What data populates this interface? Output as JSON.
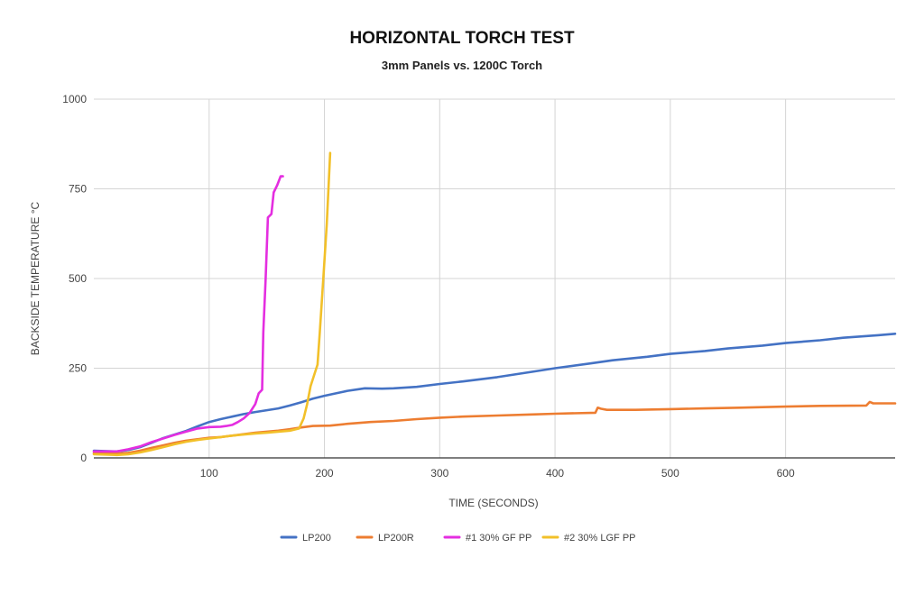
{
  "chart_data": {
    "type": "line",
    "title": "HORIZONTAL TORCH TEST",
    "subtitle": "3mm Panels vs. 1200C Torch",
    "xlabel": "TIME (SECONDS)",
    "ylabel": "BACKSIDE TEMPERATURE °C",
    "xlim": [
      0,
      695
    ],
    "ylim": [
      0,
      1000
    ],
    "x_ticks": [
      100,
      200,
      300,
      400,
      500,
      600
    ],
    "y_ticks": [
      0,
      250,
      500,
      750,
      1000
    ],
    "grid": true,
    "legend_position": "bottom-center",
    "series": [
      {
        "name": "LP200",
        "color": "#4472C4",
        "points": [
          [
            0,
            20
          ],
          [
            20,
            18
          ],
          [
            30,
            22
          ],
          [
            40,
            30
          ],
          [
            50,
            42
          ],
          [
            60,
            55
          ],
          [
            70,
            65
          ],
          [
            80,
            75
          ],
          [
            90,
            88
          ],
          [
            100,
            100
          ],
          [
            110,
            108
          ],
          [
            120,
            115
          ],
          [
            130,
            122
          ],
          [
            140,
            128
          ],
          [
            150,
            133
          ],
          [
            160,
            138
          ],
          [
            170,
            146
          ],
          [
            180,
            155
          ],
          [
            190,
            165
          ],
          [
            200,
            173
          ],
          [
            210,
            180
          ],
          [
            220,
            187
          ],
          [
            235,
            194
          ],
          [
            250,
            193
          ],
          [
            260,
            194
          ],
          [
            280,
            198
          ],
          [
            300,
            206
          ],
          [
            320,
            213
          ],
          [
            350,
            225
          ],
          [
            380,
            240
          ],
          [
            400,
            250
          ],
          [
            430,
            263
          ],
          [
            450,
            272
          ],
          [
            480,
            282
          ],
          [
            500,
            290
          ],
          [
            530,
            298
          ],
          [
            550,
            305
          ],
          [
            580,
            313
          ],
          [
            600,
            320
          ],
          [
            630,
            328
          ],
          [
            650,
            335
          ],
          [
            680,
            342
          ],
          [
            695,
            346
          ]
        ]
      },
      {
        "name": "LP200R",
        "color": "#ED7D31",
        "points": [
          [
            0,
            13
          ],
          [
            20,
            12
          ],
          [
            30,
            14
          ],
          [
            40,
            20
          ],
          [
            50,
            28
          ],
          [
            60,
            35
          ],
          [
            70,
            42
          ],
          [
            80,
            48
          ],
          [
            90,
            52
          ],
          [
            100,
            56
          ],
          [
            110,
            58
          ],
          [
            120,
            62
          ],
          [
            130,
            66
          ],
          [
            140,
            70
          ],
          [
            150,
            73
          ],
          [
            160,
            76
          ],
          [
            170,
            80
          ],
          [
            180,
            85
          ],
          [
            190,
            89
          ],
          [
            205,
            90
          ],
          [
            220,
            95
          ],
          [
            240,
            100
          ],
          [
            260,
            103
          ],
          [
            280,
            108
          ],
          [
            300,
            112
          ],
          [
            320,
            115
          ],
          [
            350,
            118
          ],
          [
            380,
            121
          ],
          [
            400,
            123
          ],
          [
            435,
            126
          ],
          [
            437,
            140
          ],
          [
            440,
            137
          ],
          [
            445,
            134
          ],
          [
            470,
            134
          ],
          [
            500,
            136
          ],
          [
            530,
            138
          ],
          [
            560,
            140
          ],
          [
            600,
            143
          ],
          [
            630,
            145
          ],
          [
            670,
            146
          ],
          [
            673,
            156
          ],
          [
            676,
            152
          ],
          [
            695,
            152
          ]
        ]
      },
      {
        "name": "#1 30% GF PP",
        "color": "#E42EE0",
        "points": [
          [
            0,
            18
          ],
          [
            20,
            18
          ],
          [
            30,
            24
          ],
          [
            40,
            32
          ],
          [
            50,
            44
          ],
          [
            60,
            54
          ],
          [
            70,
            64
          ],
          [
            80,
            73
          ],
          [
            90,
            82
          ],
          [
            100,
            86
          ],
          [
            110,
            87
          ],
          [
            115,
            89
          ],
          [
            120,
            92
          ],
          [
            125,
            100
          ],
          [
            130,
            110
          ],
          [
            135,
            125
          ],
          [
            140,
            150
          ],
          [
            143,
            180
          ],
          [
            146,
            190
          ],
          [
            147,
            350
          ],
          [
            149,
            500
          ],
          [
            151,
            670
          ],
          [
            154,
            680
          ],
          [
            156,
            740
          ],
          [
            159,
            760
          ],
          [
            162,
            785
          ],
          [
            164,
            785
          ]
        ]
      },
      {
        "name": "#2 30% LGF PP",
        "color": "#F2C029",
        "points": [
          [
            0,
            10
          ],
          [
            20,
            8
          ],
          [
            30,
            10
          ],
          [
            40,
            15
          ],
          [
            50,
            22
          ],
          [
            60,
            30
          ],
          [
            70,
            38
          ],
          [
            80,
            45
          ],
          [
            90,
            50
          ],
          [
            100,
            54
          ],
          [
            110,
            58
          ],
          [
            120,
            62
          ],
          [
            130,
            65
          ],
          [
            140,
            68
          ],
          [
            150,
            70
          ],
          [
            160,
            73
          ],
          [
            170,
            76
          ],
          [
            178,
            82
          ],
          [
            182,
            110
          ],
          [
            185,
            150
          ],
          [
            188,
            200
          ],
          [
            192,
            240
          ],
          [
            194,
            260
          ],
          [
            196,
            350
          ],
          [
            199,
            500
          ],
          [
            202,
            650
          ],
          [
            205,
            850
          ]
        ]
      }
    ]
  }
}
